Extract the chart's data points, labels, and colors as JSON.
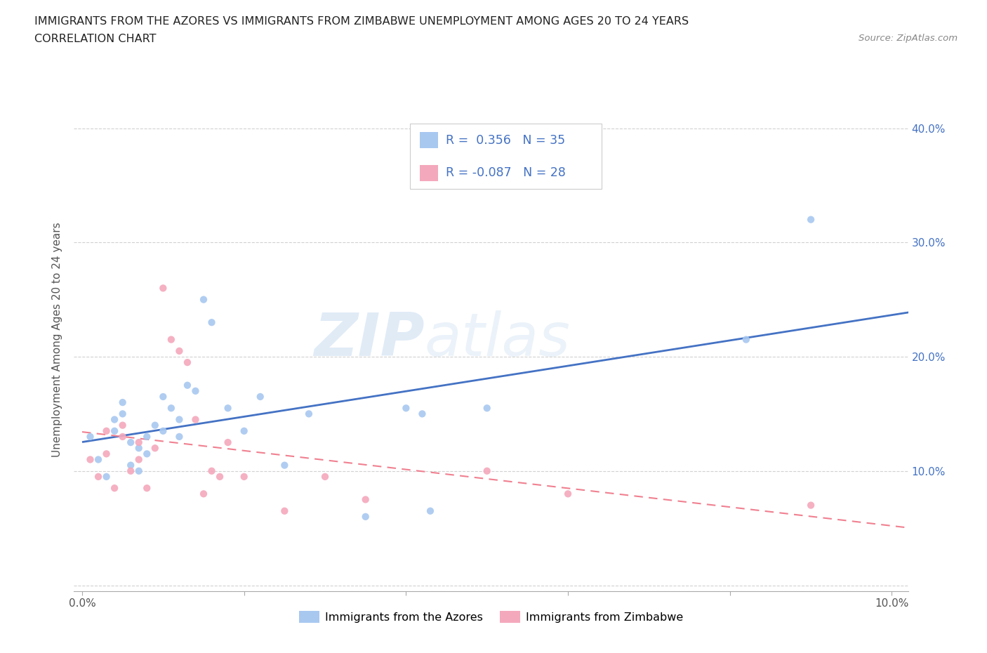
{
  "title_line1": "IMMIGRANTS FROM THE AZORES VS IMMIGRANTS FROM ZIMBABWE UNEMPLOYMENT AMONG AGES 20 TO 24 YEARS",
  "title_line2": "CORRELATION CHART",
  "source_text": "Source: ZipAtlas.com",
  "ylabel": "Unemployment Among Ages 20 to 24 years",
  "watermark_zip": "ZIP",
  "watermark_atlas": "atlas",
  "legend_text_azores": "R =  0.356   N = 35",
  "legend_text_zimbabwe": "R = -0.087   N = 28",
  "legend_label_azores": "Immigrants from the Azores",
  "legend_label_zimbabwe": "Immigrants from Zimbabwe",
  "azores_color": "#A8C8F0",
  "zimbabwe_color": "#F4A8BC",
  "trendline_azores_color": "#4472C4",
  "trendline_zimbabwe_color": "#F08090",
  "xlim": [
    -0.001,
    0.102
  ],
  "ylim": [
    -0.005,
    0.435
  ],
  "xtick_vals": [
    0.0,
    0.02,
    0.04,
    0.06,
    0.08,
    0.1
  ],
  "ytick_vals": [
    0.0,
    0.1,
    0.2,
    0.3,
    0.4
  ],
  "background_color": "#FFFFFF",
  "grid_color": "#CCCCCC",
  "azores_x": [
    0.001,
    0.002,
    0.003,
    0.004,
    0.004,
    0.005,
    0.005,
    0.006,
    0.006,
    0.007,
    0.007,
    0.008,
    0.008,
    0.009,
    0.01,
    0.01,
    0.011,
    0.012,
    0.012,
    0.013,
    0.014,
    0.015,
    0.016,
    0.018,
    0.02,
    0.022,
    0.025,
    0.028,
    0.035,
    0.04,
    0.042,
    0.043,
    0.05,
    0.082,
    0.09
  ],
  "azores_y": [
    0.13,
    0.11,
    0.095,
    0.145,
    0.135,
    0.15,
    0.16,
    0.105,
    0.125,
    0.1,
    0.12,
    0.13,
    0.115,
    0.14,
    0.165,
    0.135,
    0.155,
    0.145,
    0.13,
    0.175,
    0.17,
    0.25,
    0.23,
    0.155,
    0.135,
    0.165,
    0.105,
    0.15,
    0.06,
    0.155,
    0.15,
    0.065,
    0.155,
    0.215,
    0.32
  ],
  "zimbabwe_x": [
    0.001,
    0.002,
    0.003,
    0.003,
    0.004,
    0.005,
    0.005,
    0.006,
    0.007,
    0.007,
    0.008,
    0.009,
    0.01,
    0.011,
    0.012,
    0.013,
    0.014,
    0.015,
    0.016,
    0.017,
    0.018,
    0.02,
    0.025,
    0.03,
    0.035,
    0.05,
    0.06,
    0.09
  ],
  "zimbabwe_y": [
    0.11,
    0.095,
    0.135,
    0.115,
    0.085,
    0.14,
    0.13,
    0.1,
    0.125,
    0.11,
    0.085,
    0.12,
    0.26,
    0.215,
    0.205,
    0.195,
    0.145,
    0.08,
    0.1,
    0.095,
    0.125,
    0.095,
    0.065,
    0.095,
    0.075,
    0.1,
    0.08,
    0.07
  ]
}
